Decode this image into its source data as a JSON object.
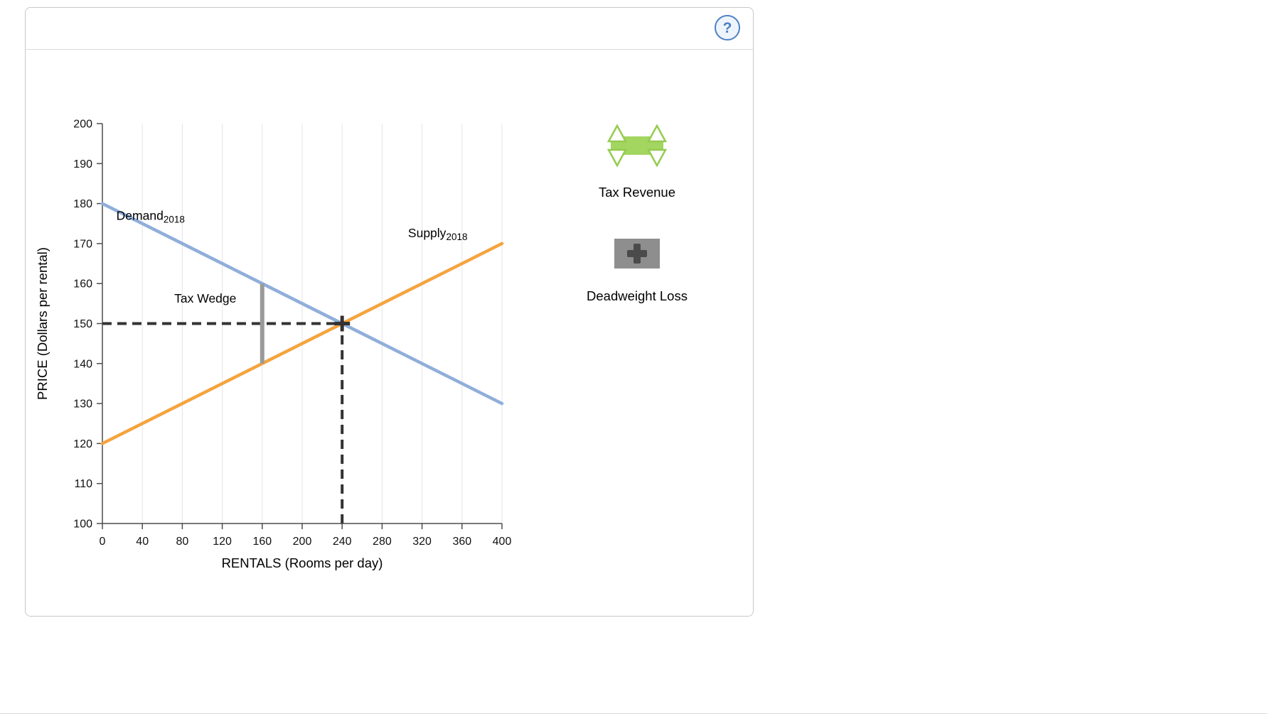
{
  "card": {
    "help_label": "?",
    "help_color": "#4d80c4"
  },
  "chart_data": {
    "type": "line",
    "title": "",
    "xlabel": "RENTALS (Rooms per day)",
    "ylabel": "PRICE (Dollars per rental)",
    "xlim": [
      0,
      400
    ],
    "ylim": [
      100,
      200
    ],
    "x_ticks": [
      0,
      40,
      80,
      120,
      160,
      200,
      240,
      280,
      320,
      360,
      400
    ],
    "y_ticks": [
      100,
      110,
      120,
      130,
      140,
      150,
      160,
      170,
      180,
      190,
      200
    ],
    "grid": "vertical",
    "grid_color": "#e4e4e4",
    "axis_color": "#4d4d4d",
    "series": [
      {
        "name": "Demand",
        "sub": "2018",
        "x": [
          0,
          400
        ],
        "y": [
          180,
          130
        ],
        "color": "#8faedb",
        "label_pos": {
          "x": 14,
          "y": 175.9
        }
      },
      {
        "name": "Supply",
        "sub": "2018",
        "x": [
          0,
          400
        ],
        "y": [
          120,
          170
        ],
        "color": "#f4a440",
        "label_pos": {
          "x": 306,
          "y": 171.6
        }
      }
    ],
    "equilibrium": {
      "x": 240,
      "price": 150,
      "color": "#333333"
    },
    "tax_wedge": {
      "x": 160,
      "y_from": 140,
      "y_to": 160,
      "color": "#9a9a9a",
      "label": "Tax Wedge",
      "label_pos": {
        "x": 72,
        "y": 155.2
      }
    }
  },
  "legend": {
    "items": [
      {
        "label": "Tax Revenue",
        "color": "#a3d561",
        "border_color": "#94cc4e"
      },
      {
        "label": "Deadweight Loss",
        "color": "#8e8e8e",
        "plus_color": "#4b4b4b"
      }
    ]
  }
}
